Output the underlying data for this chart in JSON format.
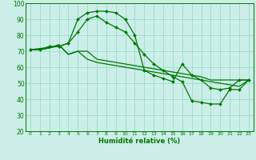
{
  "xlabel": "Humidité relative (%)",
  "background_color": "#cceee8",
  "grid_color": "#99ddcc",
  "line_color": "#007700",
  "xlim": [
    -0.5,
    23.5
  ],
  "ylim": [
    20,
    100
  ],
  "xticks": [
    0,
    1,
    2,
    3,
    4,
    5,
    6,
    7,
    8,
    9,
    10,
    11,
    12,
    13,
    14,
    15,
    16,
    17,
    18,
    19,
    20,
    21,
    22,
    23
  ],
  "yticks": [
    20,
    30,
    40,
    50,
    60,
    70,
    80,
    90,
    100
  ],
  "series": [
    {
      "x": [
        0,
        1,
        2,
        3,
        4,
        5,
        6,
        7,
        8,
        9,
        10,
        11,
        12,
        13,
        14,
        15,
        16,
        17,
        18,
        19,
        20,
        21,
        22,
        23
      ],
      "y": [
        71,
        71,
        73,
        73,
        75,
        90,
        94,
        95,
        95,
        94,
        90,
        80,
        58,
        55,
        53,
        51,
        62,
        55,
        52,
        47,
        46,
        47,
        52,
        52
      ],
      "markers": true
    },
    {
      "x": [
        0,
        1,
        2,
        3,
        4,
        5,
        6,
        7,
        8,
        9,
        10,
        11,
        12,
        13,
        14,
        15,
        16,
        17,
        18,
        19,
        20,
        21,
        22,
        23
      ],
      "y": [
        71,
        71,
        72,
        74,
        68,
        70,
        70,
        65,
        64,
        63,
        62,
        61,
        60,
        59,
        58,
        57,
        56,
        55,
        54,
        52,
        52,
        52,
        52,
        52
      ],
      "markers": false
    },
    {
      "x": [
        0,
        1,
        2,
        3,
        4,
        5,
        6,
        7,
        8,
        9,
        10,
        11,
        12,
        13,
        14,
        15,
        16,
        17,
        18,
        19,
        20,
        21,
        22,
        23
      ],
      "y": [
        71,
        71,
        72,
        74,
        68,
        70,
        65,
        63,
        62,
        61,
        60,
        59,
        58,
        57,
        56,
        55,
        54,
        53,
        52,
        51,
        50,
        49,
        48,
        52
      ],
      "markers": false
    },
    {
      "x": [
        0,
        3,
        4,
        5,
        6,
        7,
        8,
        9,
        10,
        11,
        12,
        13,
        14,
        15,
        16,
        17,
        18,
        19,
        20,
        21,
        22,
        23
      ],
      "y": [
        71,
        73,
        75,
        82,
        90,
        92,
        88,
        85,
        82,
        75,
        68,
        62,
        58,
        54,
        51,
        39,
        38,
        37,
        37,
        46,
        46,
        52
      ],
      "markers": true
    }
  ]
}
